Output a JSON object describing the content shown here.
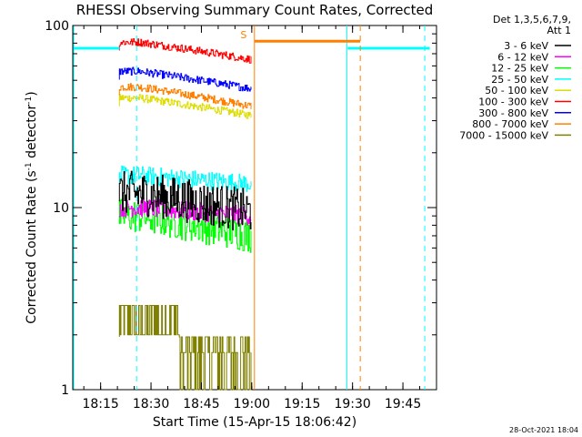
{
  "chart_data": {
    "type": "line",
    "title": "RHESSI Observing Summary Count Rates, Corrected",
    "xlabel": "Start Time (15-Apr-15 18:06:42)",
    "ylabel": "Corrected Count Rate (s⁻¹ detector⁻¹)",
    "ylabel_parts": {
      "main": "Corrected Count Rate (s",
      "sup1": "-1",
      "mid": " detector",
      "sup2": "-1",
      "end": ")"
    },
    "x_range_minutes_after_18_00": [
      6.7,
      115
    ],
    "y_scale": "log",
    "ylim": [
      1,
      100
    ],
    "ytick_labels": [
      "1",
      "10",
      "100"
    ],
    "ytick_values": [
      1,
      10,
      100
    ],
    "xtick_labels": [
      "18:15",
      "18:30",
      "18:45",
      "19:00",
      "19:15",
      "19:30",
      "19:45"
    ],
    "xtick_values_minutes_after_18_00": [
      15,
      30,
      45,
      60,
      75,
      90,
      105
    ],
    "legend_header": [
      "Det 1,3,5,6,7,9,",
      "Att 1"
    ],
    "legend_placement": "right",
    "series": [
      {
        "name": "3 - 6 keV",
        "color": "#000000",
        "level": 12,
        "spread": 0.28,
        "end_level": 9.5
      },
      {
        "name": "6 - 12 keV",
        "color": "#ff00ff",
        "level": 10,
        "spread": 0.12,
        "end_level": 9.0
      },
      {
        "name": "12 - 25 keV",
        "color": "#00ff00",
        "level": 9.0,
        "spread": 0.22,
        "end_level": 7.0
      },
      {
        "name": "25 - 50 keV",
        "color": "#00ffff",
        "level": 15,
        "spread": 0.12,
        "end_level": 13.5
      },
      {
        "name": "50 - 100 keV",
        "color": "#dddd00",
        "level": 40,
        "spread": 0.05,
        "end_level": 32
      },
      {
        "name": "100 - 300 keV",
        "color": "#ff0000",
        "level": 81,
        "spread": 0.05,
        "end_level": 65
      },
      {
        "name": "300 - 800 keV",
        "color": "#0000ff",
        "level": 56,
        "spread": 0.05,
        "end_level": 45
      },
      {
        "name": "800 - 7000 keV",
        "color": "#ff8000",
        "level": 46,
        "spread": 0.05,
        "end_level": 36
      },
      {
        "name": "7000 - 15000 keV",
        "color": "#808000",
        "level": 2.4,
        "spread": 0.2,
        "end_level": 1.6
      }
    ],
    "markers": {
      "saa_label": "S",
      "saa_color": "#ff8000",
      "night_color": "#00ffff",
      "saa_interval_minutes": [
        60.8,
        92.3
      ],
      "night_intervals_minutes": [
        [
          6.7,
          20.6
        ],
        [
          88.3,
          113
        ]
      ],
      "data_interval_minutes": [
        20.6,
        59.8
      ],
      "dashed_cyan_minutes": [
        25.7,
        111.5
      ],
      "dashed_orange_minutes": [
        92.3
      ],
      "saa_bar_level": 82,
      "night_bar_level": 75
    }
  },
  "footer": {
    "date": "28-Oct-2021 18:04"
  }
}
